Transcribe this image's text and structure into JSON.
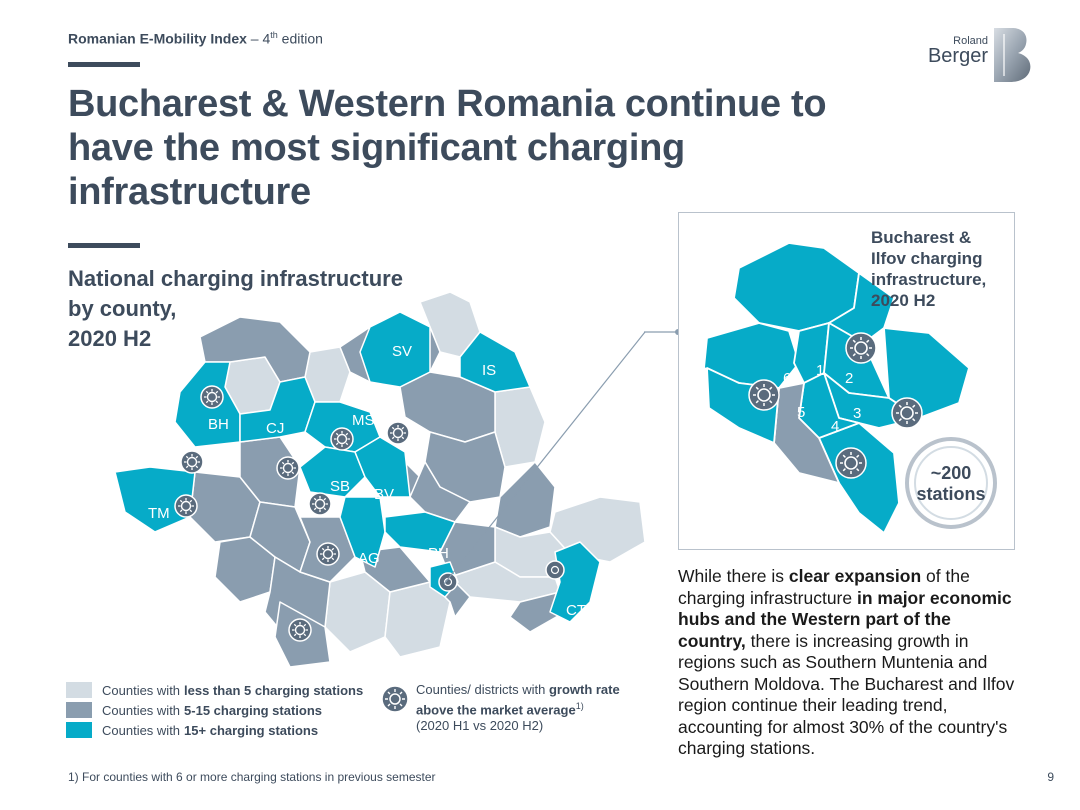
{
  "header": {
    "prefix": "Romanian E-Mobility Index",
    "sep": " – 4",
    "sup": "th",
    "suffix": " edition"
  },
  "logo": {
    "line1": "Roland",
    "line2": "Berger"
  },
  "title": "Bucharest & Western Romania continue to have the most significant charging infrastructure",
  "subtitle": {
    "line1": "National charging infrastructure",
    "line2": "by county,",
    "line3": "2020 H2"
  },
  "map_labels": [
    "SV",
    "IS",
    "BH",
    "CJ",
    "MS",
    "SB",
    "BV",
    "TM",
    "AG",
    "PH",
    "CT"
  ],
  "inset": {
    "title_line1": "Bucharest &",
    "title_line2": "Ilfov charging",
    "title_line3": "infrastructure,",
    "title_line4": "2020 H2",
    "sectors": [
      "1",
      "2",
      "3",
      "4",
      "5",
      "6"
    ],
    "stations_count": "~200",
    "stations_label": "stations"
  },
  "body": {
    "p1": "While there is ",
    "b1": "clear expansion",
    "p2": " of the charging infrastructure ",
    "b2": "in major economic hubs and the Western part of the country,",
    "p3": " there is increasing growth in regions such as Southern Muntenia and Southern Moldova. The Bucharest and Ilfov region continue their leading trend, accounting for almost 30% of the country's charging stations."
  },
  "legend": {
    "row1_text": "Counties with",
    "row1_bold": "less than 5 charging stations",
    "row2_text": "Counties with",
    "row2_bold": "5-15 charging stations",
    "row3_text": "Counties with",
    "row3_bold": "15+ charging stations",
    "growth_text": "Counties/ districts with ",
    "growth_bold": "growth rate above the market average",
    "growth_sup": "1)",
    "growth_period": "(2020 H1 vs 2020 H2)"
  },
  "footnote": "1) For counties with 6 or more charging stations in previous semester",
  "page_number": "9",
  "colors": {
    "light": "#d3dce3",
    "medium": "#8a9daf",
    "teal": "#06abc8",
    "dark": "#3d4b5c"
  }
}
